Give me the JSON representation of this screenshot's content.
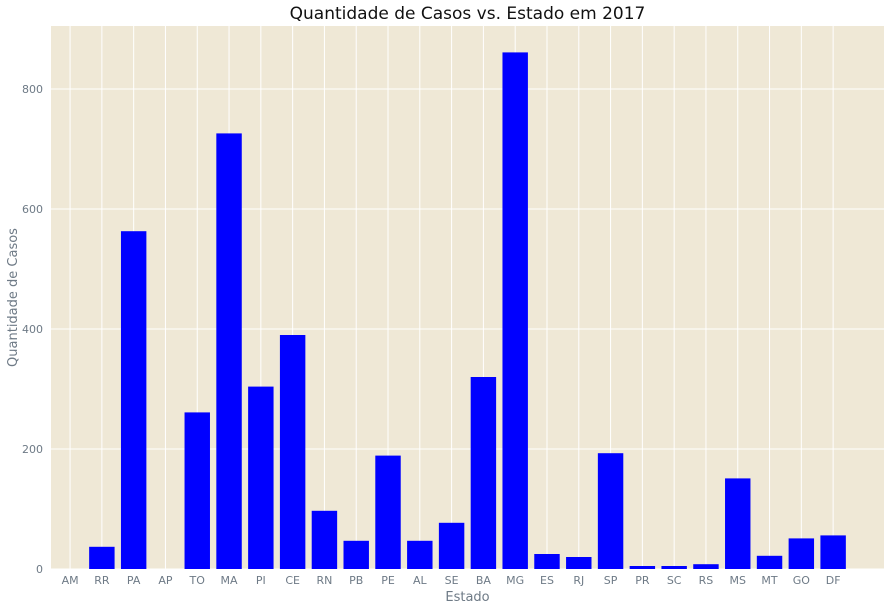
{
  "chart_data": {
    "type": "bar",
    "title": "Quantidade de Casos vs. Estado em 2017",
    "xlabel": "Estado",
    "ylabel": "Quantidade de Casos",
    "ylim": [
      0,
      905
    ],
    "yticks": [
      "0",
      "200",
      "400",
      "600",
      "800"
    ],
    "ytick_values": [
      0,
      200,
      400,
      600,
      800
    ],
    "grid": true,
    "legend": "none",
    "colors": {
      "bar": "#0000ff",
      "background": "#efe8d6",
      "grid": "#ffffff",
      "tick_text": "#6e7a86"
    },
    "categories": [
      "AM",
      "RR",
      "PA",
      "AP",
      "TO",
      "MA",
      "PI",
      "CE",
      "RN",
      "PB",
      "PE",
      "AL",
      "SE",
      "BA",
      "MG",
      "ES",
      "RJ",
      "SP",
      "PR",
      "SC",
      "RS",
      "MS",
      "MT",
      "GO",
      "DF"
    ],
    "values": [
      0,
      37,
      563,
      0,
      261,
      726,
      304,
      390,
      97,
      47,
      189,
      47,
      77,
      320,
      861,
      25,
      20,
      193,
      5,
      5,
      8,
      151,
      22,
      51,
      56
    ]
  }
}
